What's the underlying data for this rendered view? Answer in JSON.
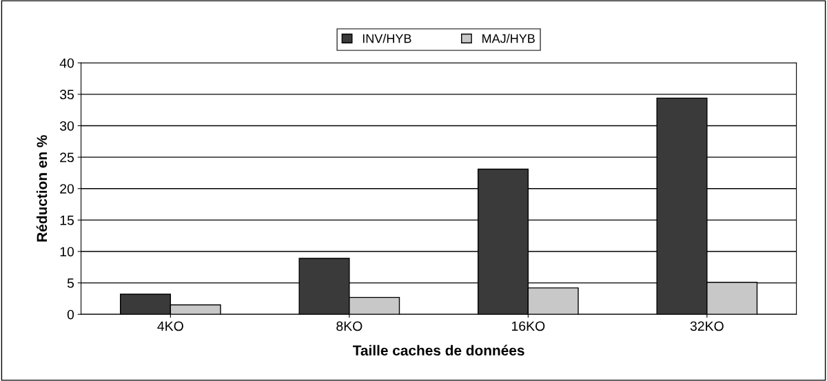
{
  "chart_data": {
    "type": "bar",
    "xlabel": "Taille caches de données",
    "ylabel": "Réduction en %",
    "categories": [
      "4KO",
      "8KO",
      "16KO",
      "32KO"
    ],
    "series": [
      {
        "name": "INV/HYB",
        "color": "#3a3a3a",
        "values": [
          3.2,
          8.9,
          23.1,
          34.4
        ]
      },
      {
        "name": "MAJ/HYB",
        "color": "#c8c8c8",
        "values": [
          1.5,
          2.7,
          4.2,
          5.1
        ]
      }
    ],
    "ylim": [
      0,
      40
    ],
    "yticks": [
      0,
      5,
      10,
      15,
      20,
      25,
      30,
      35,
      40
    ],
    "grid": "y",
    "legend": "top"
  }
}
